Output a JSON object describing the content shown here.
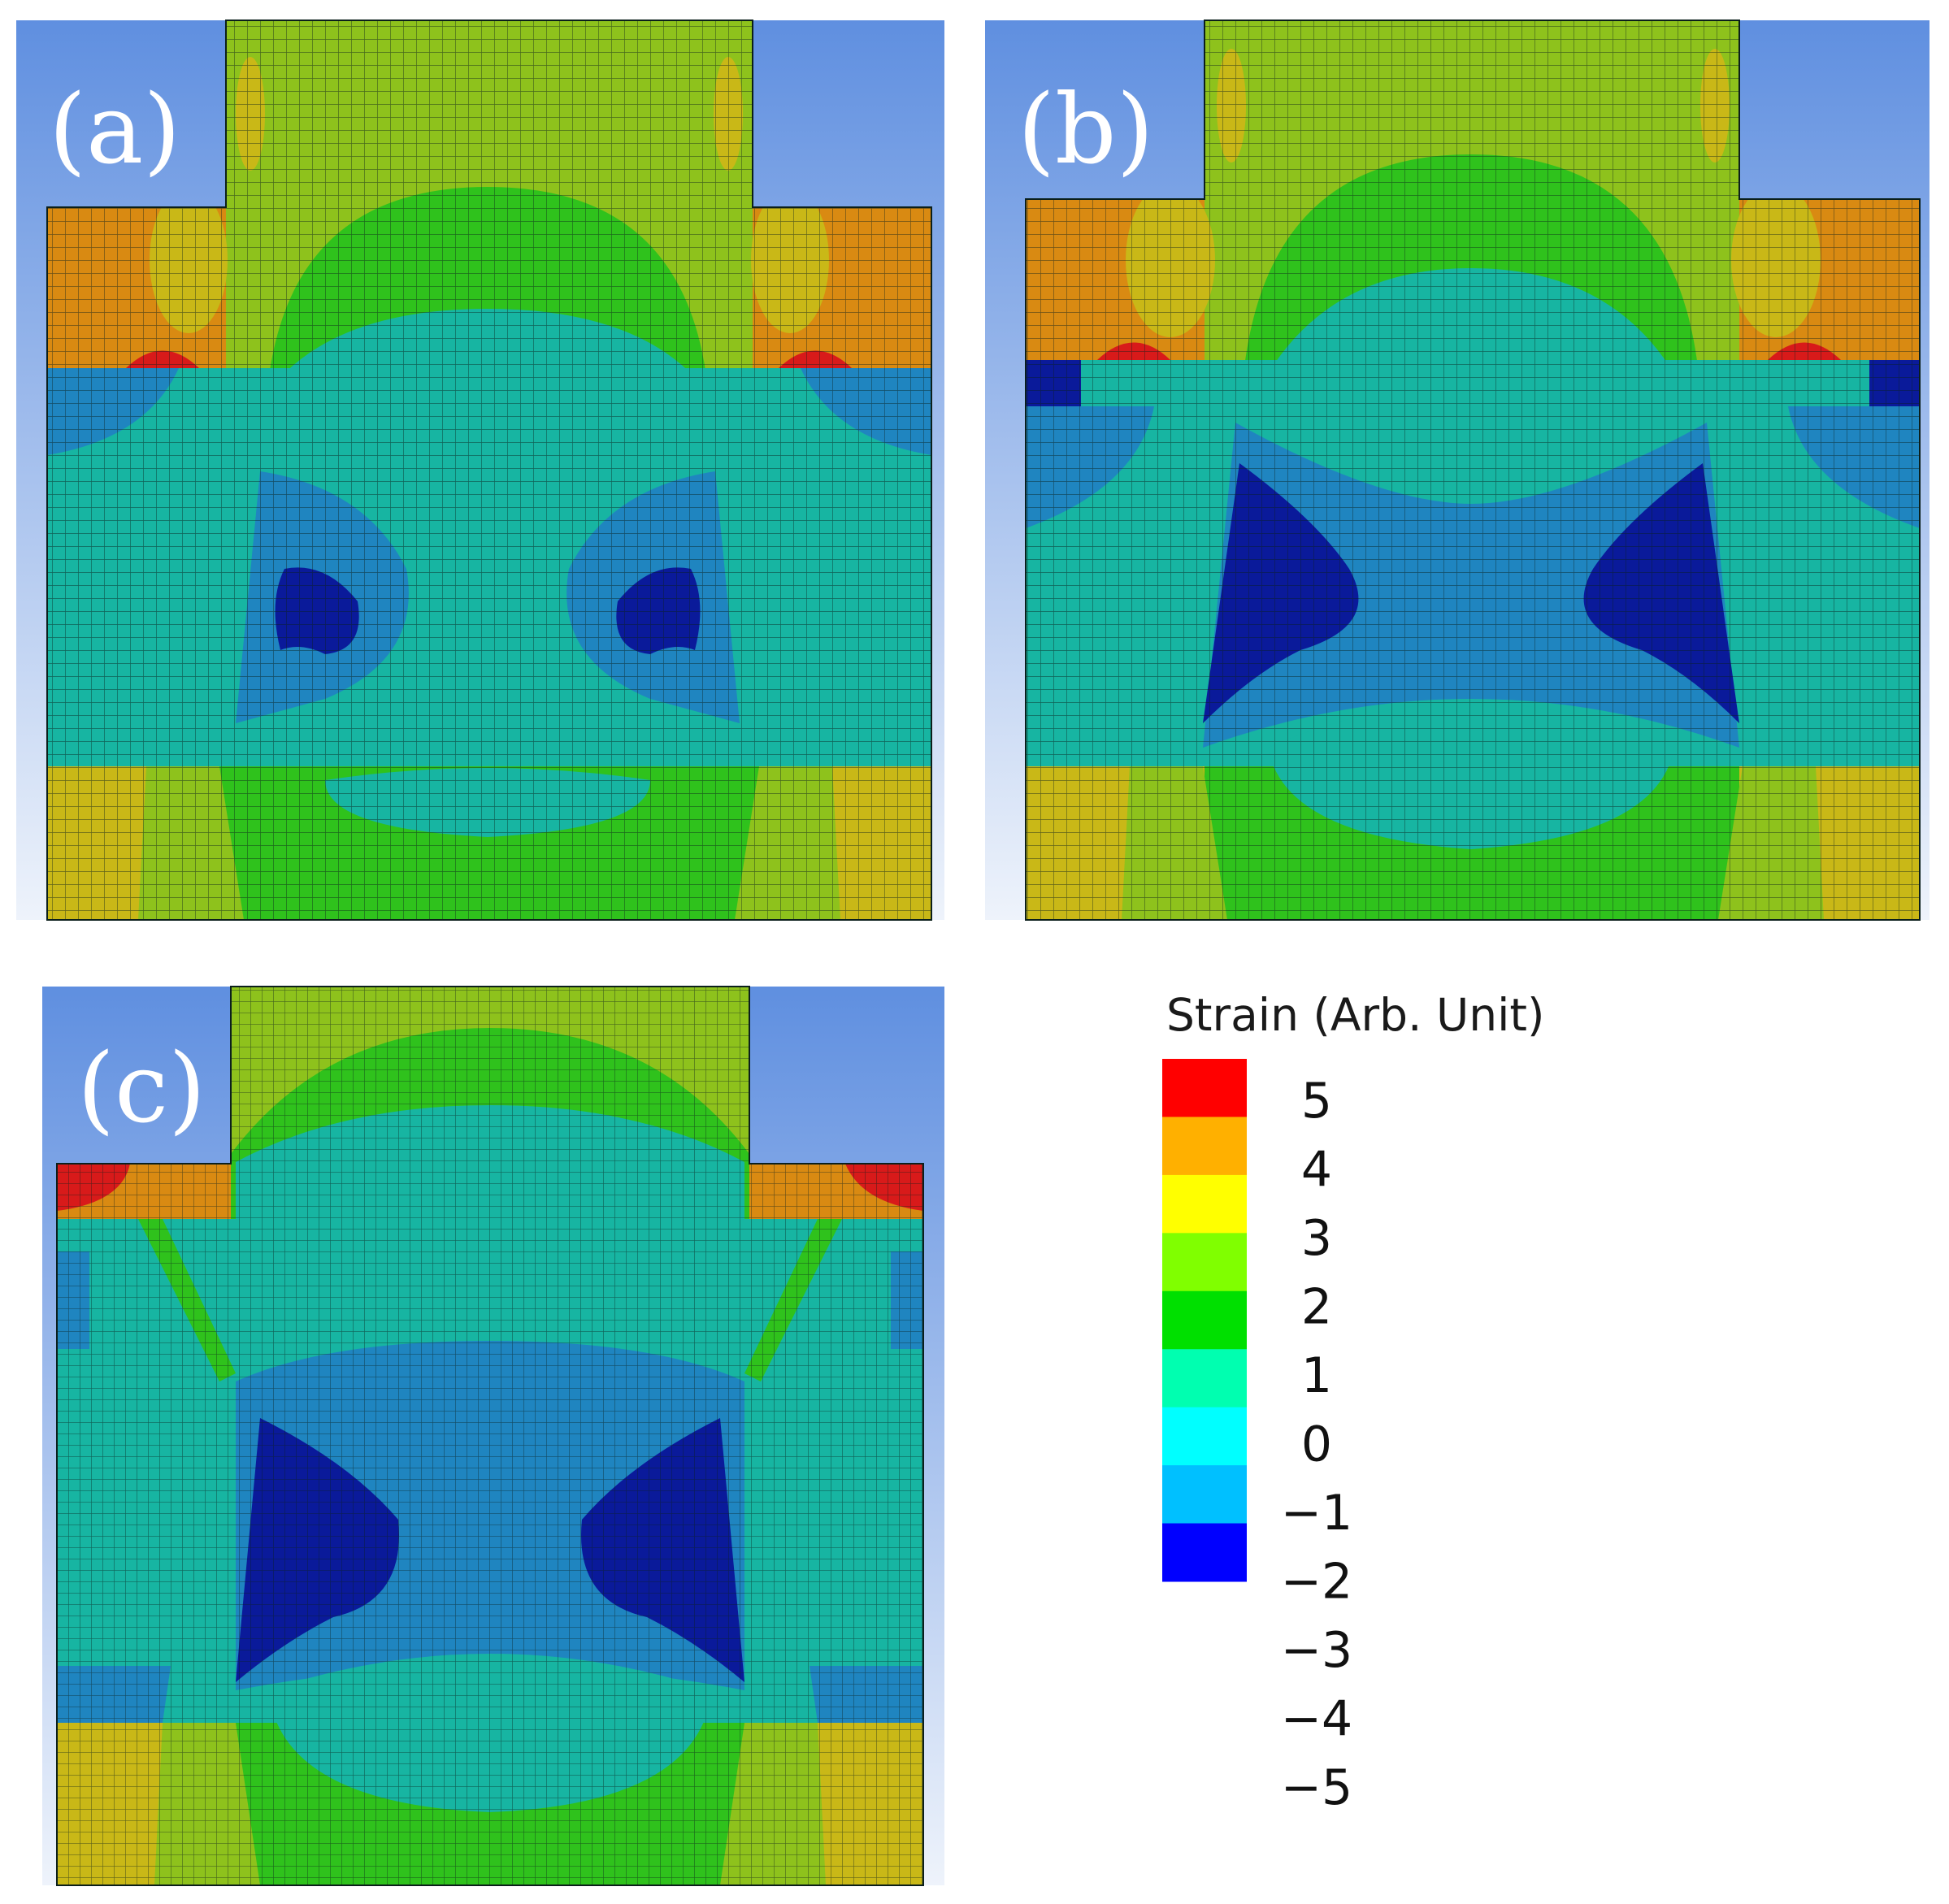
{
  "figure": {
    "panels": [
      {
        "label": "(a)"
      },
      {
        "label": "(b)"
      },
      {
        "label": "(c)"
      }
    ],
    "legend": {
      "title": "Strain (Arb. Unit)",
      "ticks": [
        "5",
        "4",
        "3",
        "2",
        "1",
        "0",
        "−1",
        "−2",
        "−3",
        "−4",
        "−5"
      ],
      "colors": [
        "#ff0000",
        "#ffb000",
        "#ffff00",
        "#80ff00",
        "#00e000",
        "#00ffb0",
        "#00ffff",
        "#00c0ff",
        "#0000ff"
      ]
    },
    "palette": {
      "red": "#d81a1a",
      "orange": "#d98a12",
      "yellow": "#c9b817",
      "yellowgreen": "#8ec21c",
      "green": "#2fc21c",
      "teal": "#17b5a2",
      "blue": "#1f85c0",
      "darkblue": "#0a1a9a",
      "bgTop": "#5f8fe0",
      "bgBottom": "#eef3fb",
      "mesh": "#0b1f1b"
    }
  }
}
